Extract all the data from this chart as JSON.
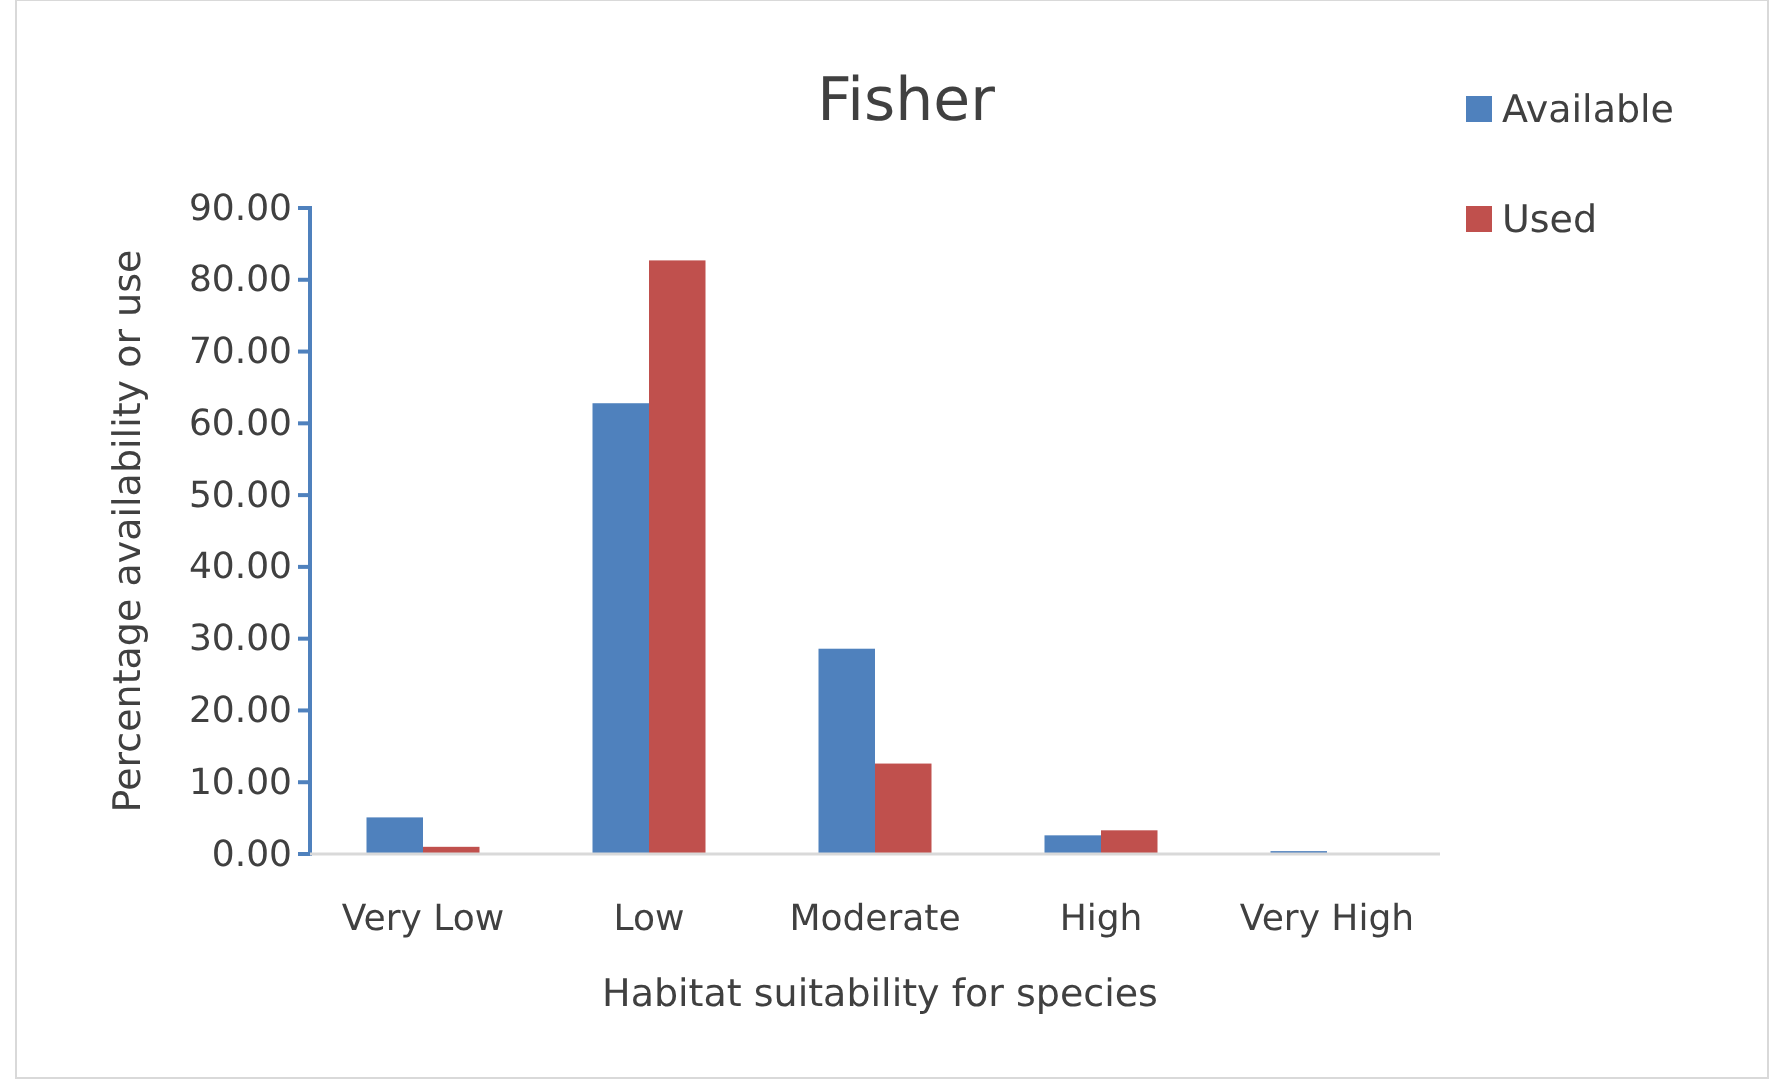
{
  "chart_data": {
    "type": "bar",
    "title": "Fisher",
    "xlabel": "Habitat suitability for species",
    "ylabel": "Percentage availability or use",
    "categories": [
      "Very Low",
      "Low",
      "Moderate",
      "High",
      "Very High"
    ],
    "series": [
      {
        "name": "Available",
        "color": "#4f81bd",
        "values": [
          5.1,
          62.8,
          28.6,
          2.6,
          0.4
        ]
      },
      {
        "name": "Used",
        "color": "#c0504d",
        "values": [
          1.0,
          82.7,
          12.6,
          3.3,
          0
        ]
      }
    ],
    "ylim": [
      0,
      90
    ],
    "yticks": [
      {
        "value": 0,
        "label": "0.00"
      },
      {
        "value": 10,
        "label": "10.00"
      },
      {
        "value": 20,
        "label": "20.00"
      },
      {
        "value": 30,
        "label": "30.00"
      },
      {
        "value": 40,
        "label": "40.00"
      },
      {
        "value": 50,
        "label": "50.00"
      },
      {
        "value": 60,
        "label": "60.00"
      },
      {
        "value": 70,
        "label": "70.00"
      },
      {
        "value": 80,
        "label": "80.00"
      },
      {
        "value": 90,
        "label": "90.00"
      }
    ],
    "legend": "top right"
  }
}
